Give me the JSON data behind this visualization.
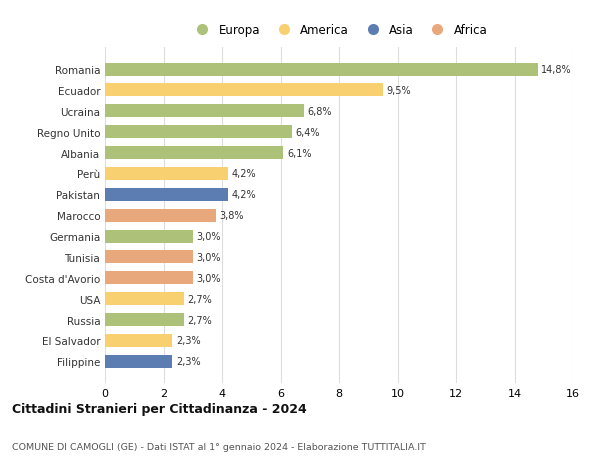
{
  "countries": [
    "Romania",
    "Ecuador",
    "Ucraina",
    "Regno Unito",
    "Albania",
    "Perù",
    "Pakistan",
    "Marocco",
    "Germania",
    "Tunisia",
    "Costa d'Avorio",
    "USA",
    "Russia",
    "El Salvador",
    "Filippine"
  ],
  "values": [
    14.8,
    9.5,
    6.8,
    6.4,
    6.1,
    4.2,
    4.2,
    3.8,
    3.0,
    3.0,
    3.0,
    2.7,
    2.7,
    2.3,
    2.3
  ],
  "labels": [
    "14,8%",
    "9,5%",
    "6,8%",
    "6,4%",
    "6,1%",
    "4,2%",
    "4,2%",
    "3,8%",
    "3,0%",
    "3,0%",
    "3,0%",
    "2,7%",
    "2,7%",
    "2,3%",
    "2,3%"
  ],
  "continents": [
    "Europa",
    "America",
    "Europa",
    "Europa",
    "Europa",
    "America",
    "Asia",
    "Africa",
    "Europa",
    "Africa",
    "Africa",
    "America",
    "Europa",
    "America",
    "Asia"
  ],
  "continent_colors": {
    "Europa": "#adc178",
    "America": "#f9d070",
    "Asia": "#5b7db1",
    "Africa": "#e8a87c"
  },
  "legend_order": [
    "Europa",
    "America",
    "Asia",
    "Africa"
  ],
  "title": "Cittadini Stranieri per Cittadinanza - 2024",
  "subtitle": "COMUNE DI CAMOGLI (GE) - Dati ISTAT al 1° gennaio 2024 - Elaborazione TUTTITALIA.IT",
  "xlim": [
    0,
    16
  ],
  "xticks": [
    0,
    2,
    4,
    6,
    8,
    10,
    12,
    14,
    16
  ],
  "background_color": "#ffffff",
  "grid_color": "#dddddd"
}
